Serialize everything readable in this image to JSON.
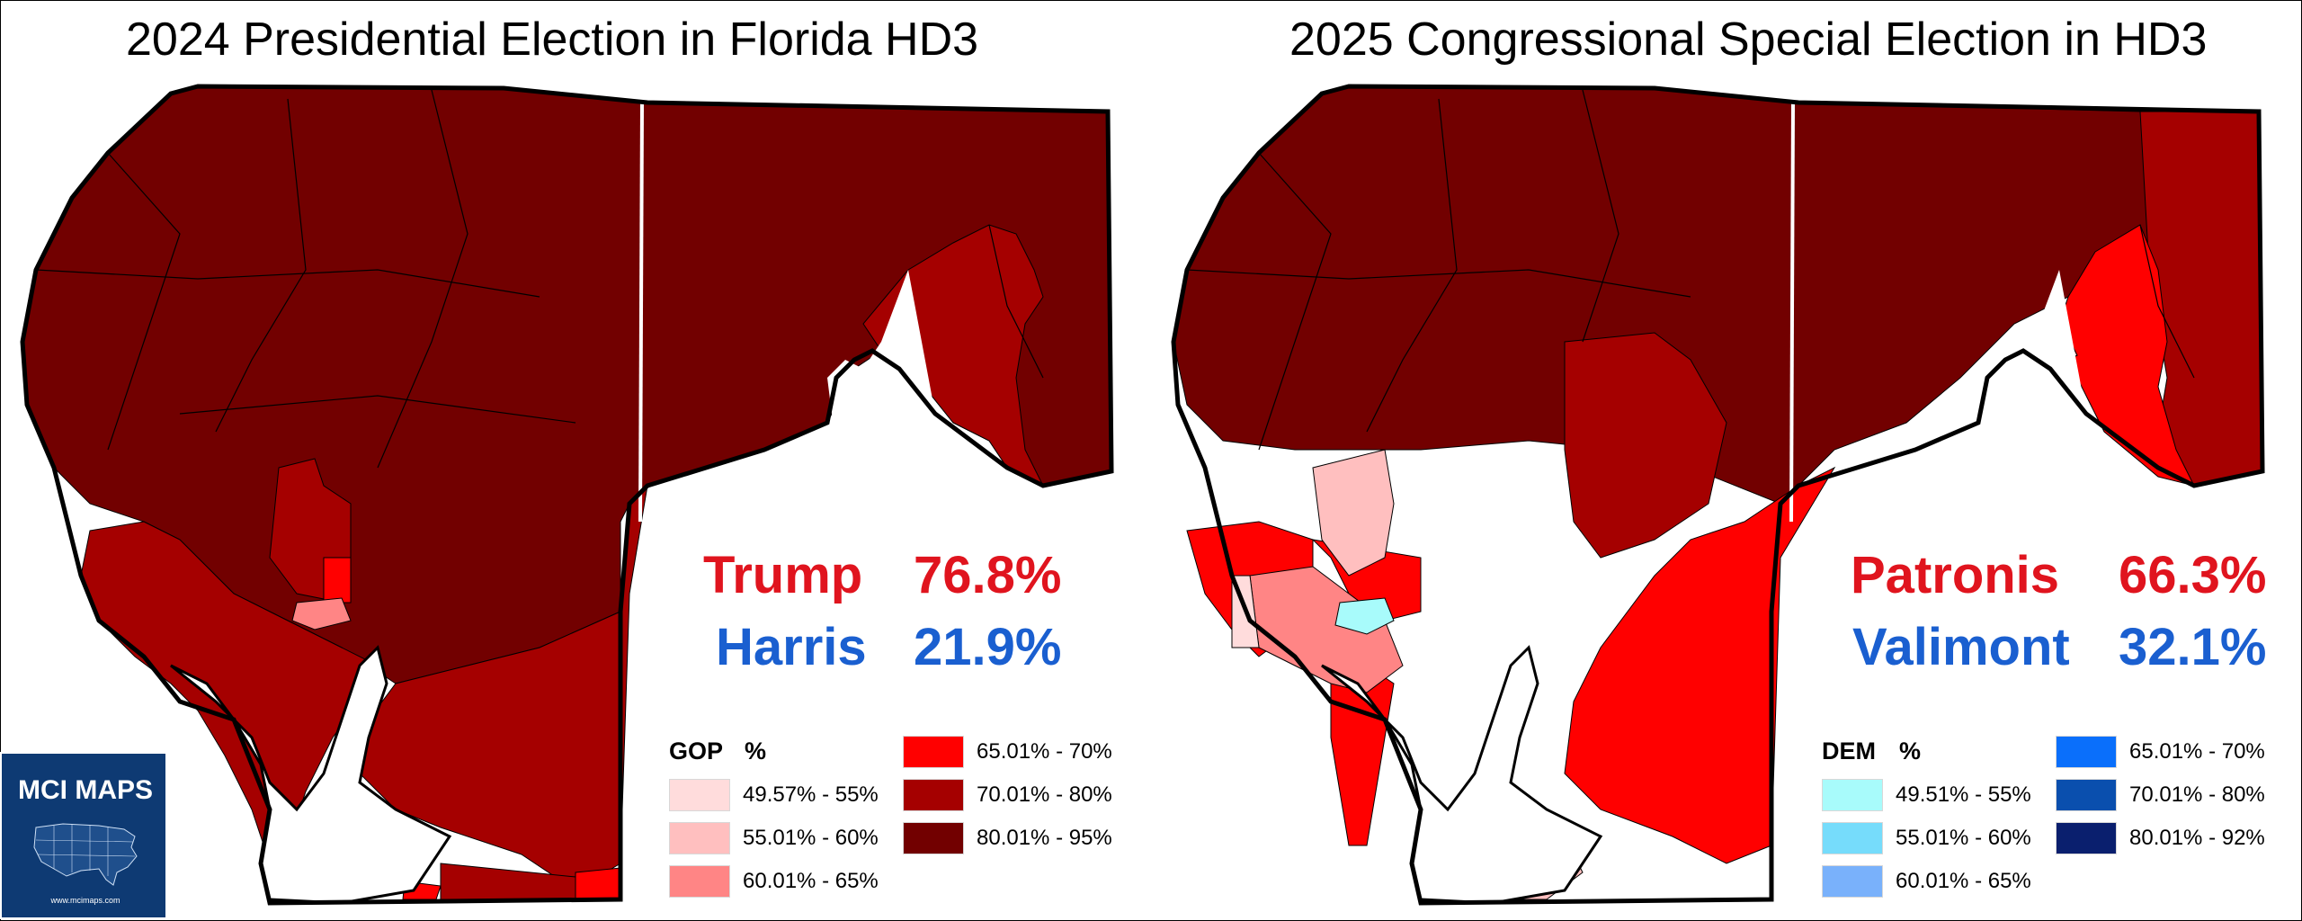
{
  "left_panel": {
    "title": "2024 Presidential Election in Florida HD3",
    "results": [
      {
        "candidate": "Trump",
        "percent": "76.8%",
        "party": "rep"
      },
      {
        "candidate": "Harris",
        "percent": "21.9%",
        "party": "dem"
      }
    ],
    "legend": {
      "header_party": "GOP",
      "header_unit": "%",
      "items": [
        {
          "label": "49.57% - 55%",
          "color": "#ffdcdc"
        },
        {
          "label": "55.01% - 60%",
          "color": "#ffbfbf"
        },
        {
          "label": "60.01% - 65%",
          "color": "#ff8585"
        },
        {
          "label": "65.01% - 70%",
          "color": "#ff0000"
        },
        {
          "label": "70.01% - 80%",
          "color": "#a50000"
        },
        {
          "label": "80.01% - 95%",
          "color": "#720000"
        }
      ]
    }
  },
  "right_panel": {
    "title": "2025 Congressional Special Election in HD3",
    "results": [
      {
        "candidate": "Patronis",
        "percent": "66.3%",
        "party": "rep"
      },
      {
        "candidate": "Valimont",
        "percent": "32.1%",
        "party": "dem"
      }
    ],
    "legend": {
      "header_party": "DEM",
      "header_unit": "%",
      "items": [
        {
          "label": "49.51% - 55%",
          "color": "#a8fbfb"
        },
        {
          "label": "55.01% - 60%",
          "color": "#76dcfb"
        },
        {
          "label": "60.01% - 65%",
          "color": "#79b1fb"
        },
        {
          "label": "65.01% - 70%",
          "color": "#0a6ffb"
        },
        {
          "label": "70.01% - 80%",
          "color": "#0a4fae"
        },
        {
          "label": "80.01% - 92%",
          "color": "#0a1f6e"
        }
      ]
    }
  },
  "logo": {
    "name": "MCI MAPS",
    "url": "www.mcimaps.com"
  },
  "colors": {
    "rep_text": "#e0141e",
    "dem_text": "#1a5fd0",
    "county_line": "#ffffff"
  }
}
